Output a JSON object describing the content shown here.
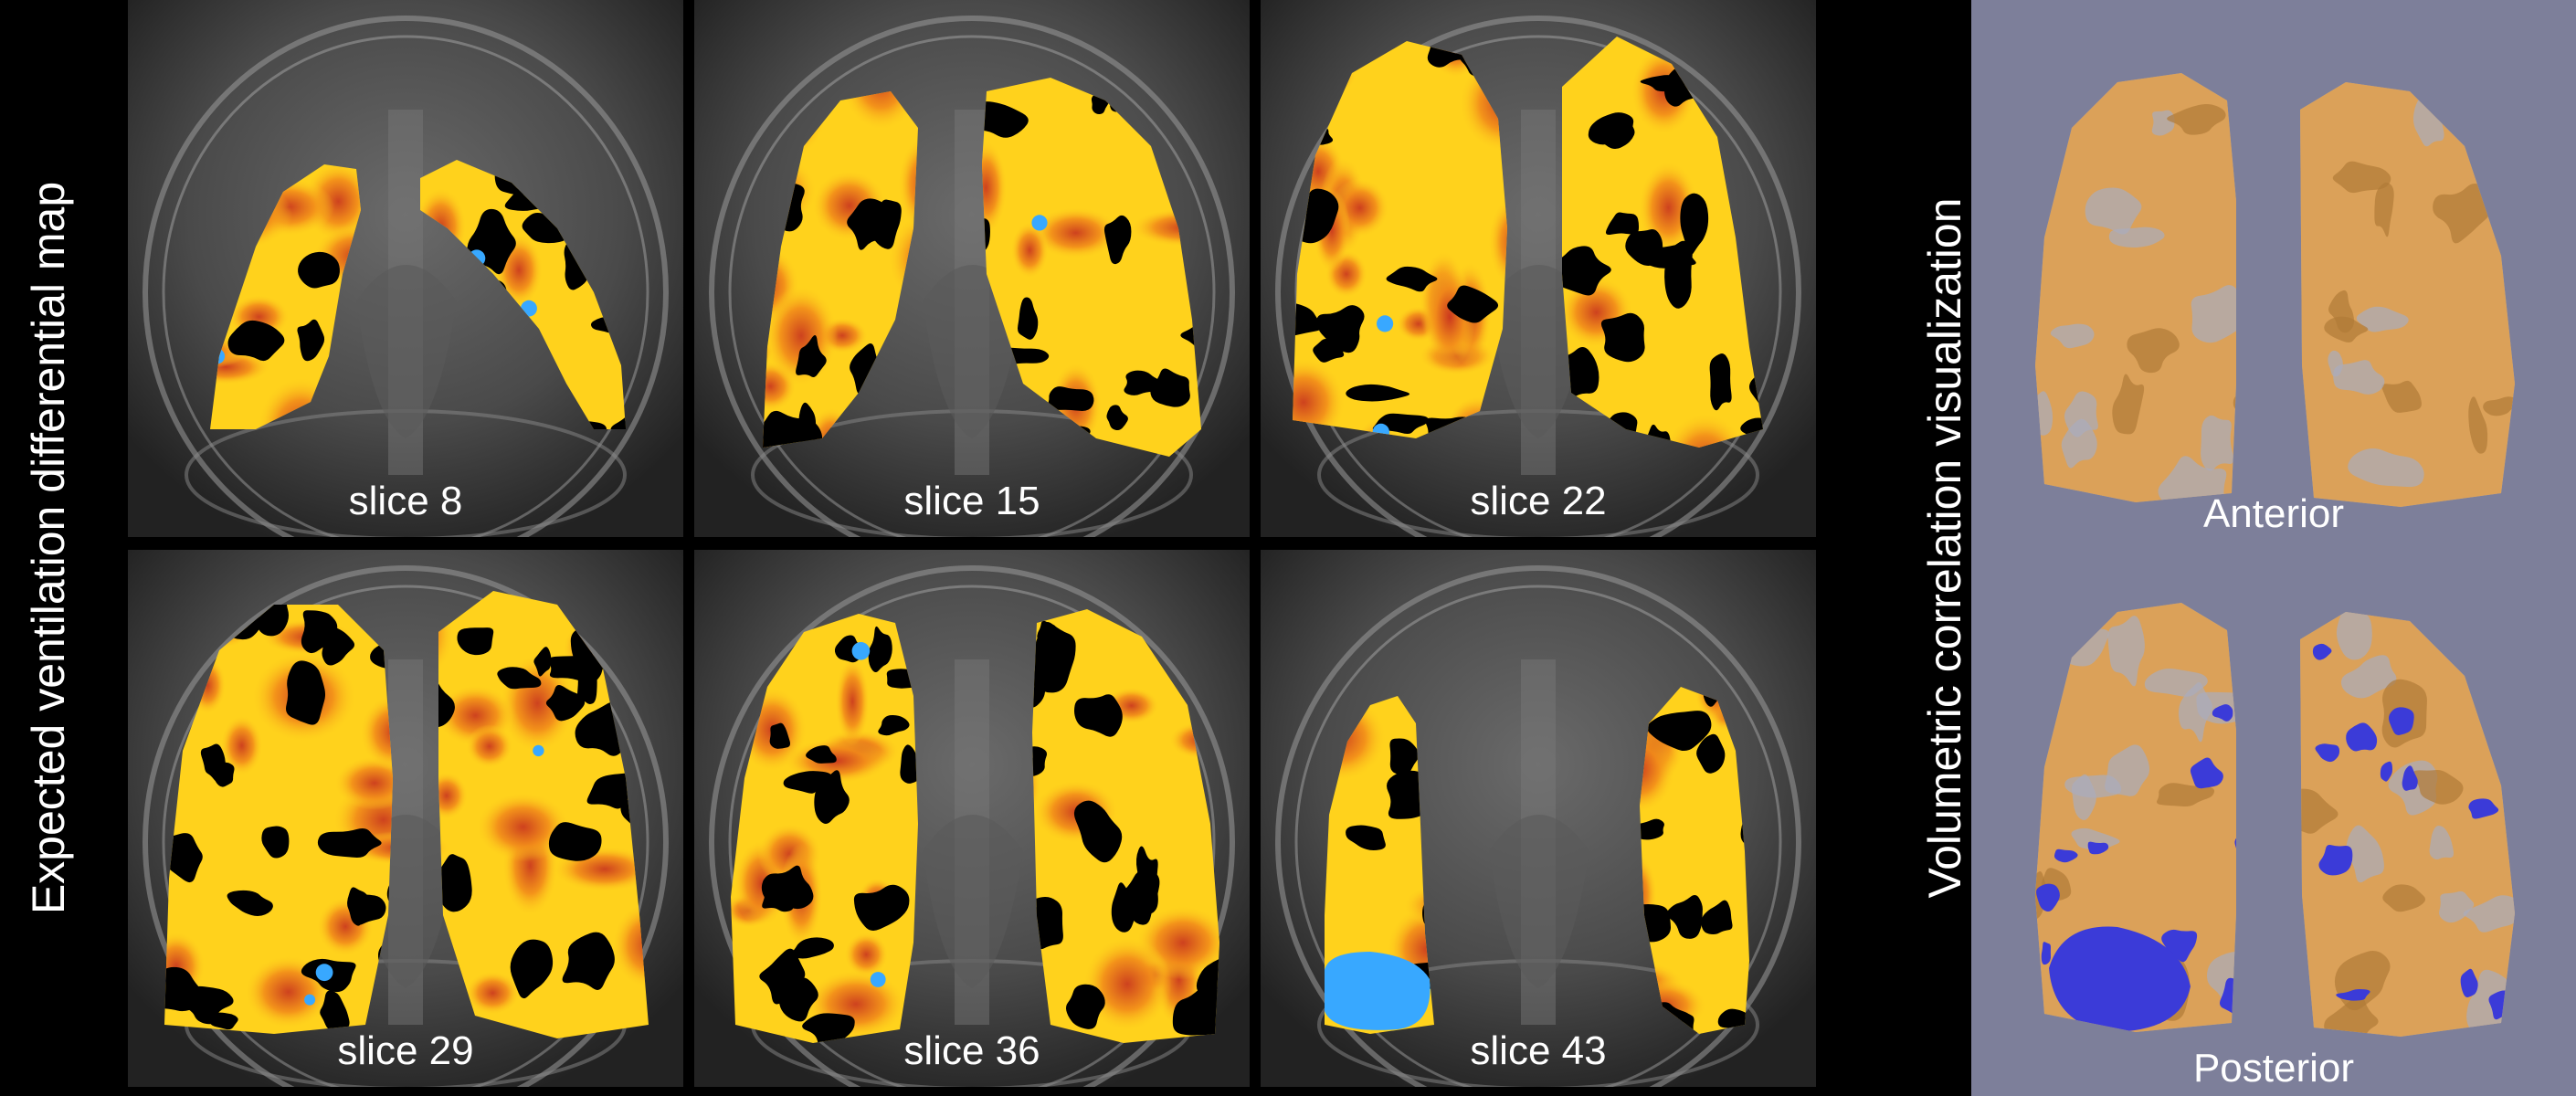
{
  "left_label": "Expected ventilation differential map",
  "right_label": "Volumetric correlation visualization",
  "slices": [
    {
      "label": "slice 8"
    },
    {
      "label": "slice 15"
    },
    {
      "label": "slice 22"
    },
    {
      "label": "slice 29"
    },
    {
      "label": "slice 36"
    },
    {
      "label": "slice 43"
    }
  ],
  "views": {
    "anterior": "Anterior",
    "posterior": "Posterior"
  },
  "colors": {
    "hot_yellow": "#ffd21c",
    "hot_orange": "#f28c1a",
    "hot_red": "#c8321e",
    "cold_blue": "#38a8ff",
    "render_orange": "#e0a050",
    "render_blue": "#3b3bd8",
    "render_background": "#7d7f9a"
  }
}
